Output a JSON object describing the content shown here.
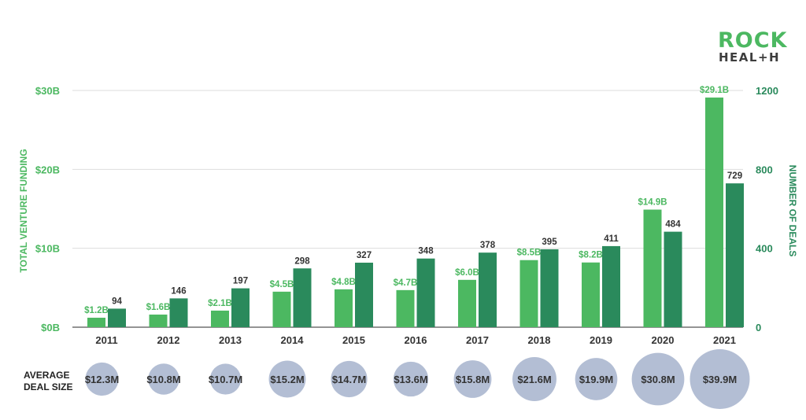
{
  "logo": {
    "line1": "ROCK",
    "line2": "HEAL+H"
  },
  "chart_data": {
    "type": "bar",
    "categories": [
      "2011",
      "2012",
      "2013",
      "2014",
      "2015",
      "2016",
      "2017",
      "2018",
      "2019",
      "2020",
      "2021"
    ],
    "series": [
      {
        "name": "Total Venture Funding",
        "axis": "left",
        "values": [
          1.2,
          1.6,
          2.1,
          4.5,
          4.8,
          4.7,
          6.0,
          8.5,
          8.2,
          14.9,
          29.1
        ],
        "labels": [
          "$1.2B",
          "$1.6B",
          "$2.1B",
          "$4.5B",
          "$4.8B",
          "$4.7B",
          "$6.0B",
          "$8.5B",
          "$8.2B",
          "$14.9B",
          "$29.1B"
        ],
        "color": "#4cb861"
      },
      {
        "name": "Number of Deals",
        "axis": "right",
        "values": [
          94,
          146,
          197,
          298,
          327,
          348,
          378,
          395,
          411,
          484,
          729
        ],
        "labels": [
          "94",
          "146",
          "197",
          "298",
          "327",
          "348",
          "378",
          "395",
          "411",
          "484",
          "729"
        ],
        "color": "#2a8a5c"
      }
    ],
    "average_deal_size": {
      "title_line1": "AVERAGE",
      "title_line2": "DEAL SIZE",
      "values": [
        12.3,
        10.8,
        10.7,
        15.2,
        14.7,
        13.6,
        15.8,
        21.6,
        19.9,
        30.8,
        39.9
      ],
      "labels": [
        "$12.3M",
        "$10.8M",
        "$10.7M",
        "$15.2M",
        "$14.7M",
        "$13.6M",
        "$15.8M",
        "$21.6M",
        "$19.9M",
        "$30.8M",
        "$39.9M"
      ],
      "color": "#b3bed4"
    },
    "ylabel_left": "TOTAL VENTURE FUNDING",
    "ylabel_right": "NUMBER OF DEALS",
    "ylim_left": [
      0,
      30
    ],
    "ylim_right": [
      0,
      1200
    ],
    "yticks_left": [
      "$0B",
      "$10B",
      "$20B",
      "$30B"
    ],
    "yticks_right": [
      "0",
      "400",
      "800",
      "1200"
    ],
    "grid": true
  }
}
